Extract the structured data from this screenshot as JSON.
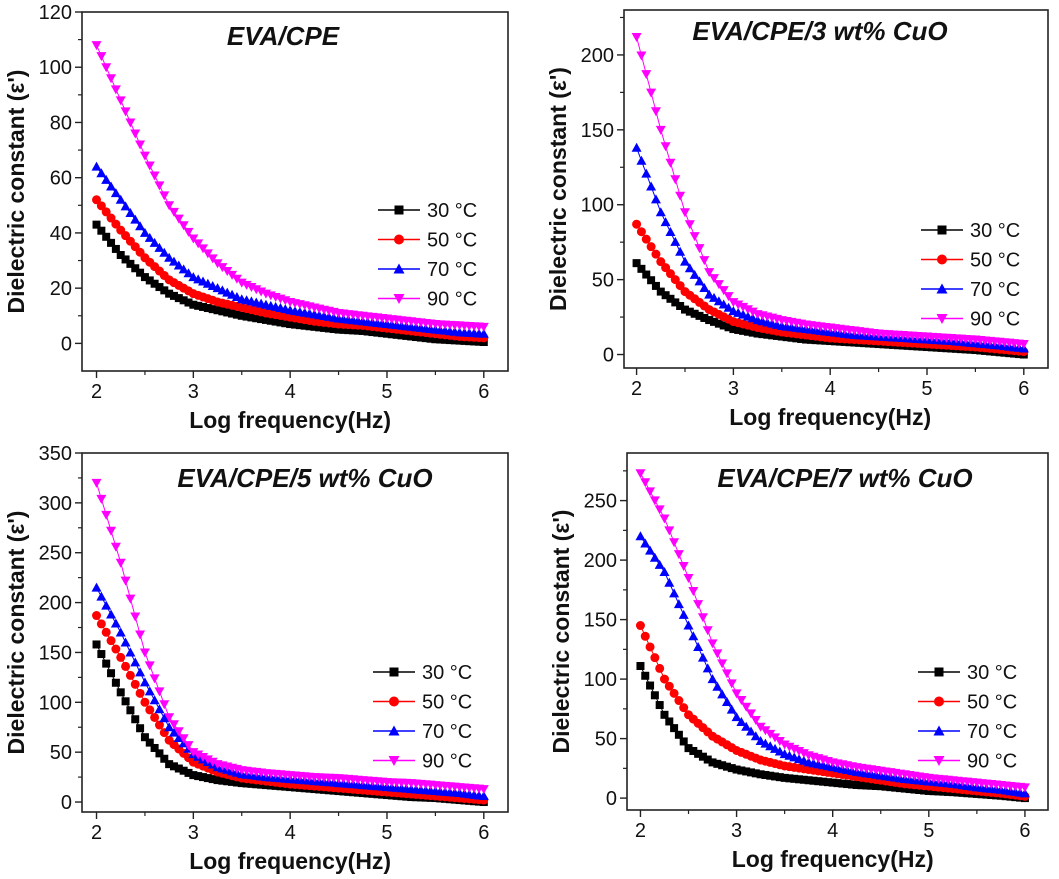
{
  "chart_data": [
    {
      "type": "scatter",
      "title": "EVA/CPE",
      "xlabel": "Log frequency(Hz)",
      "ylabel": "Dielectric constant (ε')",
      "xlim": [
        1.85,
        6.25
      ],
      "ylim": [
        -10,
        120
      ],
      "xticks": [
        "2",
        "3",
        "4",
        "5",
        "6"
      ],
      "xtick_values": [
        2,
        3,
        4,
        5,
        6
      ],
      "yticks": [
        "0",
        "20",
        "40",
        "60",
        "80",
        "100",
        "120"
      ],
      "ytick_values": [
        0,
        20,
        40,
        60,
        80,
        100,
        120
      ],
      "legend": "right",
      "x": [
        2,
        2.25,
        2.5,
        2.75,
        3,
        3.25,
        3.5,
        3.75,
        4,
        4.25,
        4.5,
        4.75,
        5,
        5.25,
        5.5,
        5.75,
        6
      ],
      "series": [
        {
          "name": "30 °C",
          "color": "#000000",
          "marker": "square",
          "values": [
            43,
            32,
            24,
            18,
            14,
            12,
            10,
            8.5,
            7,
            6,
            5,
            4.5,
            3.5,
            2.5,
            1.5,
            1,
            0.5
          ]
        },
        {
          "name": "50 °C",
          "color": "#ff0000",
          "marker": "circle",
          "values": [
            52,
            41,
            31,
            23,
            18,
            15,
            13,
            11,
            9.5,
            8,
            7,
            6.5,
            5.5,
            4.5,
            3.5,
            2.5,
            2
          ]
        },
        {
          "name": "70 °C",
          "color": "#0000ff",
          "marker": "triangle-up",
          "values": [
            64,
            52,
            40,
            31,
            24,
            20,
            16,
            14,
            12,
            10.5,
            9,
            8,
            7,
            6,
            5,
            4,
            3.5
          ]
        },
        {
          "name": "90 °C",
          "color": "#ff00ff",
          "marker": "triangle-down",
          "values": [
            108,
            88,
            68,
            50,
            38,
            29,
            22,
            18,
            15,
            13,
            11,
            10,
            9,
            8,
            7,
            6.5,
            6
          ]
        }
      ]
    },
    {
      "type": "scatter",
      "title": "EVA/CPE/3 wt% CuO",
      "xlabel": "Log frequency(Hz)",
      "ylabel": "Dielectric constant (ε')",
      "xlim": [
        1.87,
        6.25
      ],
      "ylim": [
        -9,
        230
      ],
      "xticks": [
        "2",
        "3",
        "4",
        "5",
        "6"
      ],
      "xtick_values": [
        2,
        3,
        4,
        5,
        6
      ],
      "yticks": [
        "0",
        "50",
        "100",
        "150",
        "200"
      ],
      "ytick_values": [
        0,
        50,
        100,
        150,
        200
      ],
      "legend": "right",
      "x": [
        2,
        2.25,
        2.5,
        2.75,
        3,
        3.25,
        3.5,
        3.75,
        4,
        4.25,
        4.5,
        4.75,
        5,
        5.25,
        5.5,
        5.75,
        6
      ],
      "series": [
        {
          "name": "30 °C",
          "color": "#000000",
          "marker": "square",
          "values": [
            61,
            42,
            30,
            23,
            17,
            14,
            12,
            10,
            9,
            8,
            7,
            6,
            5,
            4,
            3,
            1.5,
            0
          ]
        },
        {
          "name": "50 °C",
          "color": "#ff0000",
          "marker": "circle",
          "values": [
            87,
            62,
            42,
            30,
            22,
            18,
            15,
            13,
            11,
            10,
            9,
            8,
            7,
            6,
            5,
            3.5,
            2
          ]
        },
        {
          "name": "70 °C",
          "color": "#0000ff",
          "marker": "triangle-up",
          "values": [
            138,
            95,
            62,
            40,
            29,
            23,
            19,
            17,
            15,
            13,
            12,
            11,
            10,
            9,
            7.5,
            6,
            4
          ]
        },
        {
          "name": "90 °C",
          "color": "#ff00ff",
          "marker": "triangle-down",
          "values": [
            212,
            150,
            95,
            55,
            35,
            27,
            23,
            20,
            18,
            16,
            14,
            13,
            12,
            11,
            10,
            8.5,
            7
          ]
        }
      ]
    },
    {
      "type": "scatter",
      "title": "EVA/CPE/5 wt% CuO",
      "xlabel": "Log frequency(Hz)",
      "ylabel": "Dielectric constant (ε')",
      "xlim": [
        1.85,
        6.25
      ],
      "ylim": [
        -10,
        350
      ],
      "xticks": [
        "2",
        "3",
        "4",
        "5",
        "6"
      ],
      "xtick_values": [
        2,
        3,
        4,
        5,
        6
      ],
      "yticks": [
        "0",
        "50",
        "100",
        "150",
        "200",
        "250",
        "300",
        "350"
      ],
      "ytick_values": [
        0,
        50,
        100,
        150,
        200,
        250,
        300,
        350
      ],
      "legend": "right",
      "x": [
        2,
        2.25,
        2.5,
        2.75,
        3,
        3.25,
        3.5,
        3.75,
        4,
        4.25,
        4.5,
        4.75,
        5,
        5.25,
        5.5,
        5.75,
        6
      ],
      "series": [
        {
          "name": "30 °C",
          "color": "#000000",
          "marker": "square",
          "values": [
            158,
            110,
            65,
            38,
            27,
            22,
            19,
            17,
            15,
            13,
            11,
            9,
            7,
            5,
            4,
            2,
            0
          ]
        },
        {
          "name": "50 °C",
          "color": "#ff0000",
          "marker": "circle",
          "values": [
            187,
            145,
            100,
            62,
            40,
            30,
            24,
            21,
            18,
            16,
            14,
            12,
            10,
            8,
            6,
            4,
            2
          ]
        },
        {
          "name": "70 °C",
          "color": "#0000ff",
          "marker": "triangle-up",
          "values": [
            215,
            170,
            120,
            75,
            48,
            35,
            28,
            25,
            23,
            21,
            19,
            17,
            15,
            13,
            11,
            9,
            6
          ]
        },
        {
          "name": "90 °C",
          "color": "#ff00ff",
          "marker": "triangle-down",
          "values": [
            320,
            240,
            150,
            85,
            50,
            38,
            32,
            29,
            27,
            25,
            24,
            22,
            20,
            19,
            17,
            15,
            13
          ]
        }
      ]
    },
    {
      "type": "scatter",
      "title": "EVA/CPE/7 wt% CuO",
      "xlabel": "Log frequency(Hz)",
      "ylabel": "Dielectric constant (ε')",
      "xlim": [
        1.86,
        6.24
      ],
      "ylim": [
        -10,
        290
      ],
      "xticks": [
        "2",
        "3",
        "4",
        "5",
        "6"
      ],
      "xtick_values": [
        2,
        3,
        4,
        5,
        6
      ],
      "yticks": [
        "0",
        "50",
        "100",
        "150",
        "200",
        "250"
      ],
      "ytick_values": [
        0,
        50,
        100,
        150,
        200,
        250
      ],
      "legend": "right",
      "x": [
        2,
        2.25,
        2.5,
        2.75,
        3,
        3.25,
        3.5,
        3.75,
        4,
        4.25,
        4.5,
        4.75,
        5,
        5.25,
        5.5,
        5.75,
        6
      ],
      "series": [
        {
          "name": "30 °C",
          "color": "#000000",
          "marker": "square",
          "values": [
            111,
            70,
            42,
            30,
            24,
            20,
            17,
            15,
            13,
            11,
            10,
            8,
            6,
            5,
            3.5,
            2,
            0
          ]
        },
        {
          "name": "50 °C",
          "color": "#ff0000",
          "marker": "circle",
          "values": [
            145,
            100,
            70,
            52,
            40,
            32,
            27,
            24,
            21,
            18,
            15,
            12,
            10,
            8,
            6,
            4,
            1.5
          ]
        },
        {
          "name": "70 °C",
          "color": "#0000ff",
          "marker": "triangle-up",
          "values": [
            220,
            190,
            145,
            100,
            68,
            48,
            37,
            30,
            26,
            22,
            19,
            16,
            14,
            12,
            9,
            7,
            4
          ]
        },
        {
          "name": "90 °C",
          "color": "#ff00ff",
          "marker": "triangle-down",
          "values": [
            273,
            235,
            185,
            130,
            88,
            60,
            45,
            36,
            30,
            26,
            23,
            20,
            17,
            15,
            13,
            11,
            9
          ]
        }
      ]
    }
  ]
}
